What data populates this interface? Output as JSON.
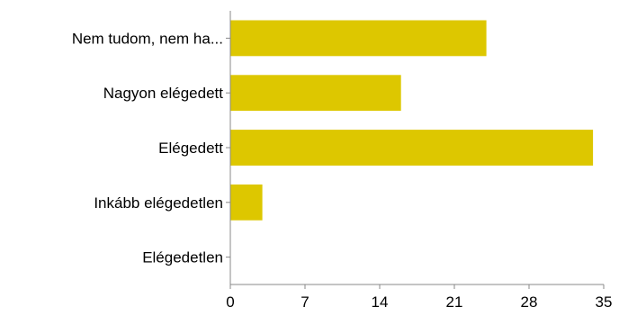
{
  "chart_data": {
    "type": "bar",
    "orientation": "horizontal",
    "categories": [
      "Nem tudom, nem ha...",
      "Nagyon elégedett",
      "Elégedett",
      "Inkább elégedetlen",
      "Elégedetlen"
    ],
    "values": [
      24,
      16,
      34,
      3,
      0
    ],
    "title": "",
    "xlabel": "",
    "ylabel": "",
    "xlim": [
      0,
      35
    ],
    "xticks": [
      0,
      7,
      14,
      21,
      28,
      35
    ],
    "grid": false,
    "legend": "none",
    "bar_color": "#ddc700"
  }
}
